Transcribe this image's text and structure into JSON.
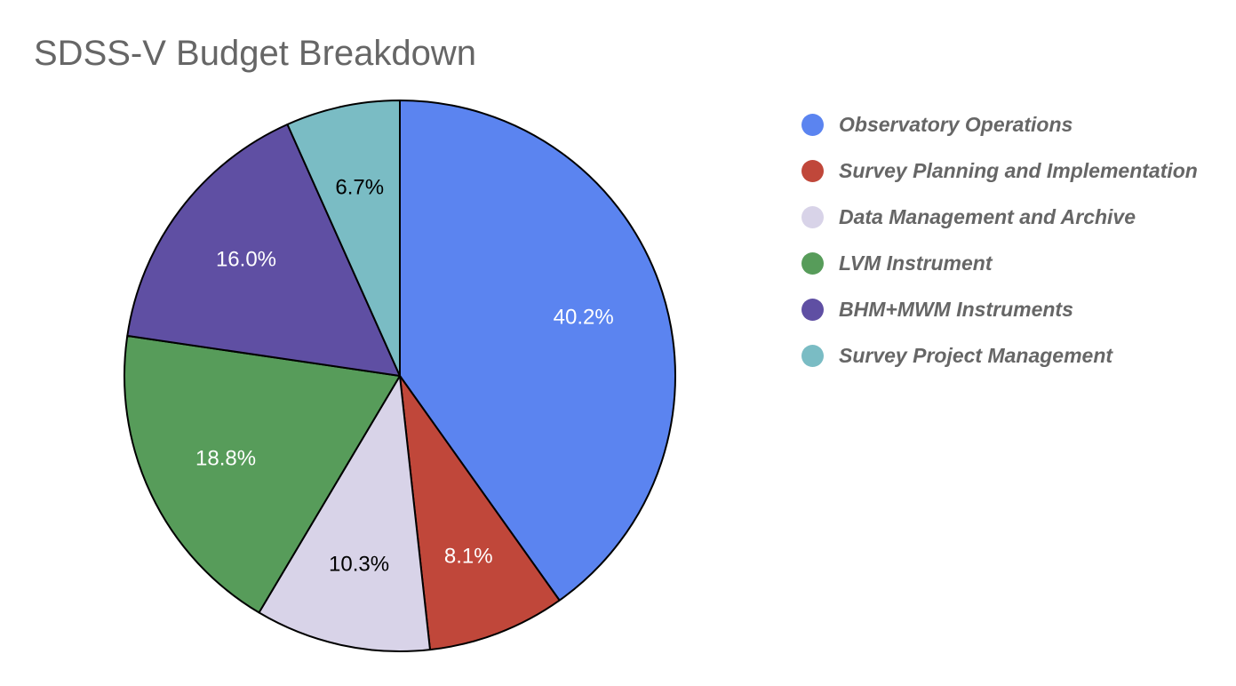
{
  "chart_data": {
    "type": "pie",
    "title": "SDSS-V Budget Breakdown",
    "legend_position": "right",
    "slices": [
      {
        "label": "Observatory Operations",
        "value": 40.2,
        "value_label": "40.2%",
        "color": "#5b84f0",
        "label_color": "#ffffff"
      },
      {
        "label": "Survey Planning and Implementation",
        "value": 8.1,
        "value_label": "8.1%",
        "color": "#c0473a",
        "label_color": "#ffffff"
      },
      {
        "label": "Data Management and Archive",
        "value": 10.3,
        "value_label": "10.3%",
        "color": "#d8d3e8",
        "label_color": "#000000"
      },
      {
        "label": "LVM Instrument",
        "value": 18.8,
        "value_label": "18.8%",
        "color": "#579c5a",
        "label_color": "#ffffff"
      },
      {
        "label": "BHM+MWM Instruments",
        "value": 16.0,
        "value_label": "16.0%",
        "color": "#5f4fa3",
        "label_color": "#ffffff"
      },
      {
        "label": "Survey Project Management",
        "value": 6.7,
        "value_label": "6.7%",
        "color": "#7abcc4",
        "label_color": "#000000"
      }
    ]
  }
}
